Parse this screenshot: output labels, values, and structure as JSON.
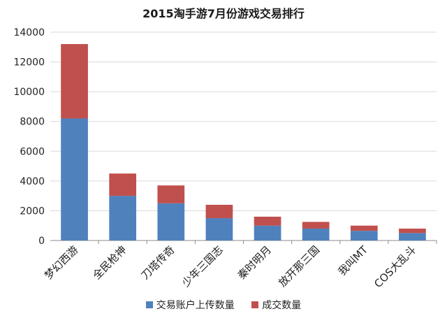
{
  "chart_data": {
    "type": "bar",
    "stacked": true,
    "title": "2015淘手游7月份游戏交易排行",
    "categories": [
      "梦幻西游",
      "全民枪神",
      "刀塔传奇",
      "少年三国志",
      "秦时明月",
      "放开那三国",
      "我叫MT",
      "COS大乱斗"
    ],
    "series": [
      {
        "name": "交易账户上传数量",
        "color": "#4F81BD",
        "values": [
          8200,
          3000,
          2500,
          1500,
          1000,
          800,
          650,
          500
        ]
      },
      {
        "name": "成交数量",
        "color": "#C0504D",
        "values": [
          5000,
          1500,
          1200,
          900,
          600,
          450,
          350,
          300
        ]
      }
    ],
    "y_ticks": [
      "0",
      "2000",
      "4000",
      "6000",
      "8000",
      "10000",
      "12000",
      "14000"
    ],
    "ylim": [
      0,
      14000
    ],
    "grid": true,
    "legend_position": "bottom"
  }
}
